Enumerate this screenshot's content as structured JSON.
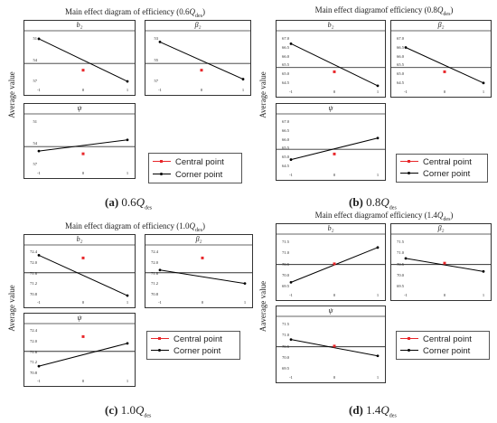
{
  "colors": {
    "central": "#e8262a",
    "corner": "#000000",
    "ref_line": "#333333",
    "frame": "#333333"
  },
  "legend": {
    "central_label": "Central point",
    "corner_label": "Corner point"
  },
  "quadrants": [
    {
      "id": "a",
      "title_prefix": "Main effect diagram of efficiency (0.6",
      "title_q": "Q",
      "title_sub": "des",
      "title_suffix": ")",
      "ylabel": "Average value",
      "caption_label": "(a)",
      "caption_value": "0.6",
      "caption_q": "Q",
      "caption_sub": "des"
    },
    {
      "id": "b",
      "title_prefix": "Main effect diagramof efficiency (0.8",
      "title_q": "Q",
      "title_sub": "des",
      "title_suffix": ")",
      "ylabel": "Average value",
      "caption_label": "(b)",
      "caption_value": "0.8",
      "caption_q": "Q",
      "caption_sub": "des"
    },
    {
      "id": "c",
      "title_prefix": "Main effect diagram of efficiency (1.0",
      "title_q": "Q",
      "title_sub": "des",
      "title_suffix": ")",
      "ylabel": "Average value",
      "caption_label": "(c)",
      "caption_value": "1.0",
      "caption_q": "Q",
      "caption_sub": "des"
    },
    {
      "id": "d",
      "title_prefix": "Main effect diagramof efficiency (1.4",
      "title_q": "Q",
      "title_sub": "des",
      "title_suffix": ")",
      "ylabel": "Aaverage value",
      "caption_label": "(d)",
      "caption_value": "1.4",
      "caption_q": "Q",
      "caption_sub": "des"
    }
  ],
  "chart_data": [
    {
      "type": "line",
      "figure": "a",
      "xticks": [
        "-1",
        "0",
        "1"
      ],
      "panels": [
        {
          "label": "b₂",
          "ylim": [
            49,
            60.5
          ],
          "yticks": [
            "51",
            "54",
            "57"
          ],
          "corner": [
            {
              "x": -1,
              "y": 59.5
            },
            {
              "x": 1,
              "y": 50.0
            }
          ],
          "central": {
            "x": 0,
            "y": 52.5
          },
          "mean": 54.0
        },
        {
          "label": "β₂",
          "ylim": [
            49,
            60.5
          ],
          "yticks": [
            "53",
            "55",
            "57"
          ],
          "corner": [
            {
              "x": -1,
              "y": 58.8
            },
            {
              "x": 1,
              "y": 50.5
            }
          ],
          "central": {
            "x": 0,
            "y": 52.5
          },
          "mean": 54.0
        },
        {
          "label": "ψ",
          "ylim": [
            49,
            60.5
          ],
          "yticks": [
            "51",
            "54",
            "57"
          ],
          "corner": [
            {
              "x": -1,
              "y": 53.0
            },
            {
              "x": 1,
              "y": 55.5
            }
          ],
          "central": {
            "x": 0,
            "y": 52.4
          },
          "mean": 54.0
        }
      ]
    },
    {
      "type": "line",
      "figure": "b",
      "xticks": [
        "-1",
        "0",
        "1"
      ],
      "panels": [
        {
          "label": "b₂",
          "ylim": [
            64.4,
            67.25
          ],
          "yticks": [
            "67.0",
            "66.5",
            "66.0",
            "65.5",
            "65.0",
            "64.5"
          ],
          "corner": [
            {
              "x": -1,
              "y": 66.75
            },
            {
              "x": 1,
              "y": 64.5
            }
          ],
          "central": {
            "x": 0,
            "y": 65.25
          },
          "mean": 65.48
        },
        {
          "label": "β₂",
          "ylim": [
            64.4,
            67.25
          ],
          "yticks": [
            "67.0",
            "66.5",
            "66.0",
            "65.5",
            "65.0",
            "64.5"
          ],
          "corner": [
            {
              "x": -1,
              "y": 66.55
            },
            {
              "x": 1,
              "y": 64.65
            }
          ],
          "central": {
            "x": 0,
            "y": 65.25
          },
          "mean": 65.48
        },
        {
          "label": "ψ",
          "ylim": [
            64.4,
            67.25
          ],
          "yticks": [
            "67.0",
            "66.5",
            "66.0",
            "65.5",
            "65.0",
            "64.5"
          ],
          "corner": [
            {
              "x": -1,
              "y": 65.0
            },
            {
              "x": 1,
              "y": 66.15
            }
          ],
          "central": {
            "x": 0,
            "y": 65.3
          },
          "mean": 65.55
        }
      ]
    },
    {
      "type": "line",
      "figure": "c",
      "xticks": [
        "-1",
        "0",
        "1"
      ],
      "panels": [
        {
          "label": "b₂",
          "ylim": [
            70.7,
            72.55
          ],
          "yticks": [
            "72.4",
            "72.0",
            "71.6",
            "71.2",
            "70.8"
          ],
          "corner": [
            {
              "x": -1,
              "y": 72.3
            },
            {
              "x": 1,
              "y": 70.8
            }
          ],
          "central": {
            "x": 0,
            "y": 72.2
          },
          "mean": 71.65
        },
        {
          "label": "β₂",
          "ylim": [
            70.7,
            72.55
          ],
          "yticks": [
            "72.4",
            "72.0",
            "71.6",
            "71.2",
            "70.8"
          ],
          "corner": [
            {
              "x": -1,
              "y": 71.75
            },
            {
              "x": 1,
              "y": 71.25
            }
          ],
          "central": {
            "x": 0,
            "y": 72.2
          },
          "mean": 71.65
        },
        {
          "label": "ψ",
          "ylim": [
            70.7,
            72.55
          ],
          "yticks": [
            "72.4",
            "72.0",
            "71.6",
            "71.2",
            "70.8"
          ],
          "corner": [
            {
              "x": -1,
              "y": 71.1
            },
            {
              "x": 1,
              "y": 71.95
            }
          ],
          "central": {
            "x": 0,
            "y": 72.2
          },
          "mean": 71.65
        }
      ]
    },
    {
      "type": "line",
      "figure": "d",
      "xticks": [
        "-1",
        "0",
        "1"
      ],
      "panels": [
        {
          "label": "b₂",
          "ylim": [
            69.2,
            71.65
          ],
          "yticks": [
            "71.5",
            "71.0",
            "70.5",
            "70.0",
            "69.5"
          ],
          "corner": [
            {
              "x": -1,
              "y": 69.6
            },
            {
              "x": 1,
              "y": 71.2
            }
          ],
          "central": {
            "x": 0,
            "y": 70.45
          },
          "mean": 70.42
        },
        {
          "label": "β₂",
          "ylim": [
            69.2,
            71.65
          ],
          "yticks": [
            "71.5",
            "71.0",
            "70.5",
            "70.0",
            "69.5"
          ],
          "corner": [
            {
              "x": -1,
              "y": 70.7
            },
            {
              "x": 1,
              "y": 70.1
            }
          ],
          "central": {
            "x": 0,
            "y": 70.48
          },
          "mean": 70.42
        },
        {
          "label": "ψ",
          "ylim": [
            69.2,
            71.65
          ],
          "yticks": [
            "71.5",
            "71.0",
            "70.5",
            "70.0",
            "69.5"
          ],
          "corner": [
            {
              "x": -1,
              "y": 70.75
            },
            {
              "x": 1,
              "y": 70.0
            }
          ],
          "central": {
            "x": 0,
            "y": 70.45
          },
          "mean": 70.42
        }
      ]
    }
  ]
}
